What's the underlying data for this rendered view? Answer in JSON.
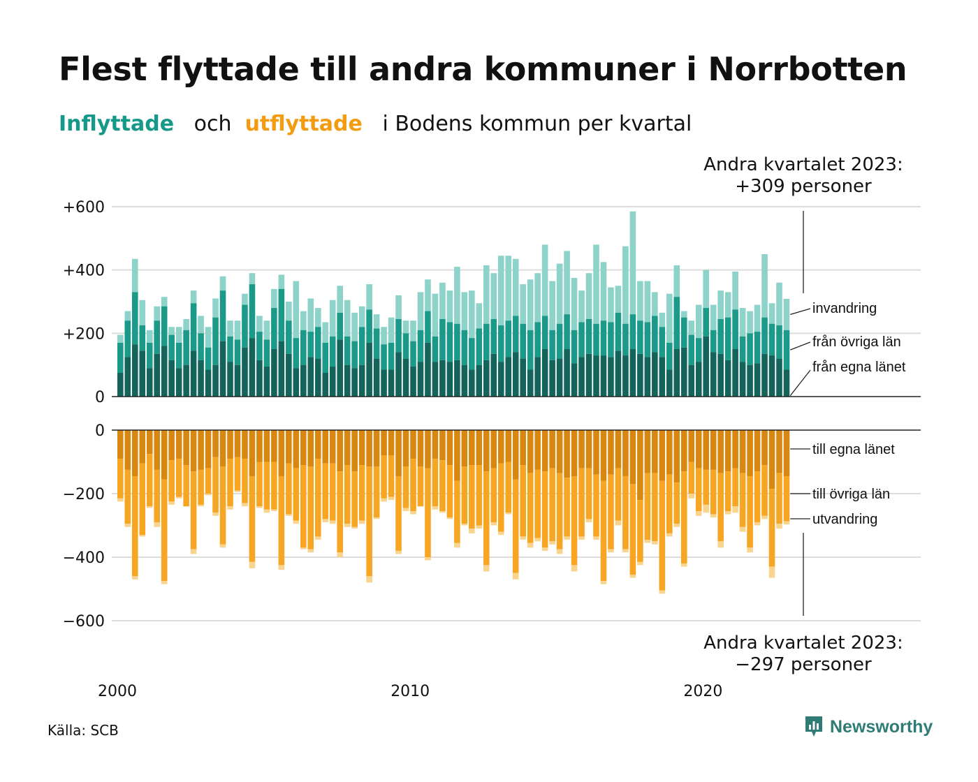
{
  "header": {
    "title": "Flest flyttade till andra kommuner i Norrbotten",
    "subtitle_in": "Inflyttade",
    "subtitle_och": "och",
    "subtitle_out": "utflyttade",
    "subtitle_rest": "i Bodens kommun per kvartal"
  },
  "footer": {
    "source": "Källa: SCB",
    "brand": "Newsworthy"
  },
  "colors": {
    "in_local": "#14645c",
    "in_other": "#1b9a8a",
    "in_immig": "#8dd3c9",
    "out_local": "#d88710",
    "out_other": "#f7a623",
    "out_emig": "#f8d48f"
  },
  "chart_data": {
    "type": "bar",
    "start_year": 2000,
    "x_tick_labels": [
      "2000",
      "2010",
      "2020"
    ],
    "top_panel": {
      "ylim": [
        0,
        600
      ],
      "tick_labels": [
        "0",
        "+200",
        "+400",
        "+600"
      ],
      "series_labels": [
        "invandring",
        "från övriga län",
        "från egna länet"
      ],
      "annotation_title": "Andra kvartalet 2023:",
      "annotation_value": "+309 personer"
    },
    "bottom_panel": {
      "ylim": [
        -600,
        0
      ],
      "tick_labels": [
        "0",
        "−200",
        "−400",
        "−600"
      ],
      "series_labels": [
        "till egna länet",
        "till övriga län",
        "utvandring"
      ],
      "annotation_title": "Andra kvartalet 2023:",
      "annotation_value": "−297 personer"
    },
    "inflow_total": [
      195,
      270,
      435,
      305,
      210,
      285,
      315,
      220,
      220,
      245,
      335,
      255,
      220,
      310,
      380,
      240,
      240,
      325,
      390,
      255,
      240,
      340,
      385,
      300,
      365,
      270,
      310,
      280,
      235,
      305,
      350,
      305,
      265,
      285,
      355,
      260,
      220,
      250,
      320,
      240,
      240,
      330,
      370,
      325,
      360,
      335,
      410,
      330,
      335,
      295,
      415,
      390,
      445,
      445,
      435,
      355,
      370,
      390,
      480,
      365,
      420,
      460,
      375,
      335,
      390,
      480,
      425,
      345,
      350,
      475,
      585,
      365,
      365,
      330,
      265,
      325,
      415,
      270,
      240,
      290,
      400,
      290,
      335,
      330,
      395,
      280,
      270,
      290,
      450,
      295,
      360,
      309
    ],
    "inflow_local": [
      75,
      125,
      165,
      145,
      90,
      135,
      160,
      115,
      90,
      100,
      145,
      115,
      85,
      100,
      175,
      110,
      100,
      155,
      185,
      115,
      95,
      150,
      175,
      135,
      90,
      100,
      125,
      120,
      75,
      95,
      180,
      100,
      90,
      100,
      170,
      120,
      85,
      85,
      140,
      120,
      95,
      110,
      170,
      110,
      115,
      110,
      115,
      100,
      85,
      100,
      115,
      135,
      110,
      125,
      140,
      120,
      85,
      125,
      150,
      115,
      120,
      150,
      105,
      125,
      135,
      130,
      130,
      125,
      145,
      130,
      150,
      135,
      125,
      140,
      125,
      85,
      150,
      155,
      100,
      110,
      190,
      140,
      135,
      115,
      150,
      110,
      100,
      105,
      135,
      130,
      120,
      85
    ],
    "inflow_other": [
      95,
      115,
      165,
      80,
      80,
      105,
      125,
      80,
      80,
      110,
      150,
      85,
      70,
      150,
      160,
      80,
      80,
      135,
      170,
      90,
      85,
      130,
      165,
      105,
      95,
      110,
      80,
      100,
      95,
      95,
      85,
      90,
      85,
      120,
      105,
      95,
      80,
      85,
      105,
      80,
      80,
      100,
      100,
      80,
      130,
      125,
      115,
      110,
      100,
      115,
      115,
      110,
      115,
      115,
      115,
      110,
      125,
      110,
      105,
      95,
      110,
      110,
      105,
      110,
      110,
      100,
      110,
      110,
      120,
      100,
      110,
      105,
      110,
      115,
      95,
      85,
      165,
      95,
      95,
      75,
      90,
      70,
      110,
      135,
      125,
      80,
      100,
      100,
      115,
      100,
      105,
      125
    ],
    "outflow_total": [
      -225,
      -305,
      -470,
      -335,
      -245,
      -305,
      -485,
      -235,
      -215,
      -240,
      -390,
      -240,
      -205,
      -270,
      -370,
      -250,
      -195,
      -240,
      -435,
      -245,
      -260,
      -255,
      -440,
      -270,
      -295,
      -375,
      -385,
      -345,
      -290,
      -295,
      -400,
      -305,
      -310,
      -295,
      -480,
      -280,
      -225,
      -220,
      -390,
      -255,
      -265,
      -240,
      -410,
      -250,
      -260,
      -280,
      -370,
      -300,
      -325,
      -310,
      -445,
      -300,
      -330,
      -265,
      -470,
      -345,
      -370,
      -350,
      -380,
      -360,
      -390,
      -345,
      -445,
      -345,
      -290,
      -345,
      -485,
      -385,
      -300,
      -385,
      -465,
      -425,
      -355,
      -360,
      -515,
      -335,
      -305,
      -430,
      -215,
      -270,
      -260,
      -275,
      -370,
      -265,
      -260,
      -320,
      -385,
      -300,
      -280,
      -465,
      -310,
      -297
    ],
    "outflow_local": [
      -90,
      -125,
      -145,
      -105,
      -75,
      -125,
      -155,
      -95,
      -90,
      -110,
      -130,
      -125,
      -120,
      -85,
      -115,
      -90,
      -85,
      -90,
      -145,
      -100,
      -100,
      -100,
      -145,
      -105,
      -120,
      -110,
      -115,
      -90,
      -105,
      -105,
      -130,
      -110,
      -130,
      -110,
      -115,
      -115,
      -80,
      -80,
      -145,
      -115,
      -90,
      -115,
      -120,
      -90,
      -95,
      -110,
      -160,
      -115,
      -110,
      -110,
      -130,
      -120,
      -105,
      -100,
      -155,
      -110,
      -135,
      -125,
      -130,
      -120,
      -135,
      -150,
      -145,
      -120,
      -120,
      -140,
      -160,
      -140,
      -120,
      -145,
      -170,
      -220,
      -135,
      -135,
      -160,
      -140,
      -165,
      -130,
      -100,
      -120,
      -125,
      -125,
      -135,
      -130,
      -120,
      -135,
      -145,
      -130,
      -110,
      -185,
      -135,
      -145
    ],
    "outflow_other": [
      -125,
      -170,
      -315,
      -225,
      -165,
      -165,
      -320,
      -130,
      -120,
      -130,
      -245,
      -110,
      -80,
      -175,
      -245,
      -150,
      -105,
      -140,
      -270,
      -140,
      -150,
      -150,
      -280,
      -160,
      -165,
      -260,
      -260,
      -245,
      -175,
      -180,
      -255,
      -185,
      -175,
      -175,
      -345,
      -160,
      -135,
      -130,
      -235,
      -130,
      -165,
      -125,
      -280,
      -150,
      -160,
      -165,
      -195,
      -180,
      -200,
      -190,
      -295,
      -170,
      -215,
      -160,
      -295,
      -225,
      -220,
      -215,
      -240,
      -230,
      -240,
      -185,
      -280,
      -215,
      -160,
      -195,
      -315,
      -235,
      -165,
      -230,
      -285,
      -195,
      -210,
      -215,
      -345,
      -185,
      -130,
      -290,
      -100,
      -135,
      -110,
      -140,
      -215,
      -125,
      -120,
      -170,
      -225,
      -160,
      -160,
      -245,
      -160,
      -142
    ]
  }
}
